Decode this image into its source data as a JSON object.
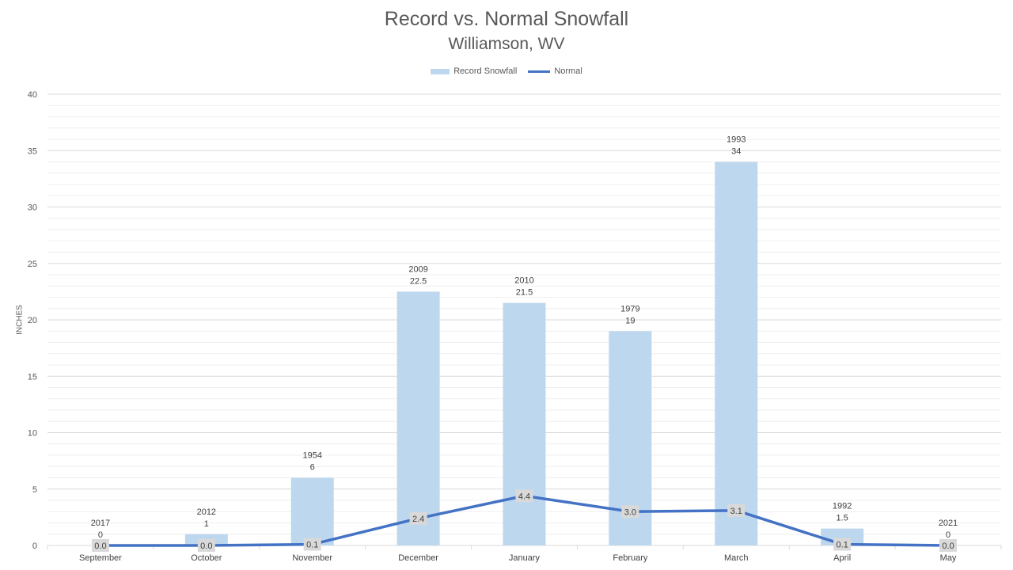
{
  "chart_data": {
    "type": "bar",
    "title": "Record vs. Normal Snowfall",
    "subtitle": "Williamson, WV",
    "xlabel": "",
    "ylabel": "INCHES",
    "ylim": [
      0,
      40
    ],
    "yticks": [
      0,
      5,
      10,
      15,
      20,
      25,
      30,
      35,
      40
    ],
    "grid": true,
    "legend_position": "top-center",
    "categories": [
      "September",
      "October",
      "November",
      "December",
      "January",
      "February",
      "March",
      "April",
      "May"
    ],
    "series": [
      {
        "name": "Record Snowfall",
        "type": "bar",
        "color": "#bdd7ee",
        "values": [
          0,
          1,
          6,
          22.5,
          21.5,
          19,
          34,
          1.5,
          0
        ],
        "years": [
          "2017",
          "2012",
          "1954",
          "2009",
          "2010",
          "1979",
          "1993",
          "1992",
          "2021"
        ],
        "value_labels": [
          "0",
          "1",
          "6",
          "22.5",
          "21.5",
          "19",
          "34",
          "1.5",
          "0"
        ]
      },
      {
        "name": "Normal",
        "type": "line",
        "color": "#4472c4",
        "values": [
          0.0,
          0.0,
          0.1,
          2.4,
          4.4,
          3.0,
          3.1,
          0.1,
          0.0
        ],
        "value_labels": [
          "0.0",
          "0.0",
          "0.1",
          "2.4",
          "4.4",
          "3.0",
          "3.1",
          "0.1",
          "0.0"
        ]
      }
    ]
  }
}
